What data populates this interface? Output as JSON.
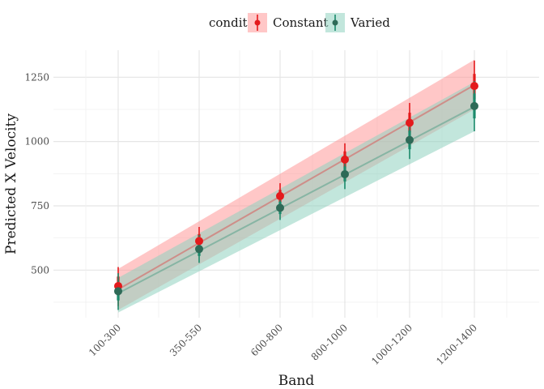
{
  "chart_data": {
    "type": "line",
    "title": "",
    "xlabel": "Band",
    "ylabel": "Predicted X Velocity",
    "categories": [
      "100-300",
      "350-550",
      "600-800",
      "800-1000",
      "1000-1200",
      "1200-1400"
    ],
    "x_midpoints": [
      200,
      450,
      700,
      900,
      1100,
      1300
    ],
    "xlim": [
      0,
      1500
    ],
    "x_breaks_minor": [
      100,
      325,
      575,
      800,
      1000,
      1200,
      1400
    ],
    "ylim": [
      315,
      1355
    ],
    "y_ticks": [
      500,
      750,
      1000,
      1250
    ],
    "y_tick_labels": [
      "500",
      "750",
      "1000",
      "1250"
    ],
    "grid": true,
    "legend": {
      "position": "top",
      "title": "condit"
    },
    "series": [
      {
        "name": "Constant",
        "color": "#E41A1C",
        "fill": "#FF9999",
        "points": [
          {
            "x": 200,
            "y": 438,
            "lo": 360,
            "hi": 512,
            "lo_inner": 400,
            "hi_inner": 475
          },
          {
            "x": 450,
            "y": 613,
            "lo": 560,
            "hi": 668,
            "lo_inner": 585,
            "hi_inner": 640
          },
          {
            "x": 700,
            "y": 788,
            "lo": 740,
            "hi": 838,
            "lo_inner": 765,
            "hi_inner": 812
          },
          {
            "x": 900,
            "y": 930,
            "lo": 868,
            "hi": 993,
            "lo_inner": 900,
            "hi_inner": 962
          },
          {
            "x": 1100,
            "y": 1073,
            "lo": 995,
            "hi": 1150,
            "lo_inner": 1035,
            "hi_inner": 1112
          },
          {
            "x": 1300,
            "y": 1216,
            "lo": 1105,
            "hi": 1315,
            "lo_inner": 1165,
            "hi_inner": 1263
          }
        ],
        "ribbon": {
          "x": [
            200,
            1300
          ],
          "fit": [
            425,
            1220
          ],
          "lo": [
            345,
            1125
          ],
          "hi": [
            505,
            1318
          ]
        }
      },
      {
        "name": "Varied",
        "color": "#1B8A6B",
        "fill": "#8FD1C0",
        "points": [
          {
            "x": 200,
            "y": 418,
            "lo": 345,
            "hi": 488,
            "lo_inner": 382,
            "hi_inner": 452
          },
          {
            "x": 450,
            "y": 582,
            "lo": 528,
            "hi": 636,
            "lo_inner": 555,
            "hi_inner": 610
          },
          {
            "x": 700,
            "y": 742,
            "lo": 695,
            "hi": 790,
            "lo_inner": 718,
            "hi_inner": 766
          },
          {
            "x": 900,
            "y": 873,
            "lo": 815,
            "hi": 933,
            "lo_inner": 845,
            "hi_inner": 903
          },
          {
            "x": 1100,
            "y": 1006,
            "lo": 932,
            "hi": 1078,
            "lo_inner": 970,
            "hi_inner": 1043
          },
          {
            "x": 1300,
            "y": 1138,
            "lo": 1040,
            "hi": 1235,
            "lo_inner": 1090,
            "hi_inner": 1187
          }
        ],
        "ribbon": {
          "x": [
            200,
            1300
          ],
          "fit": [
            410,
            1135
          ],
          "lo": [
            335,
            1040
          ],
          "hi": [
            470,
            1232
          ]
        }
      }
    ]
  }
}
